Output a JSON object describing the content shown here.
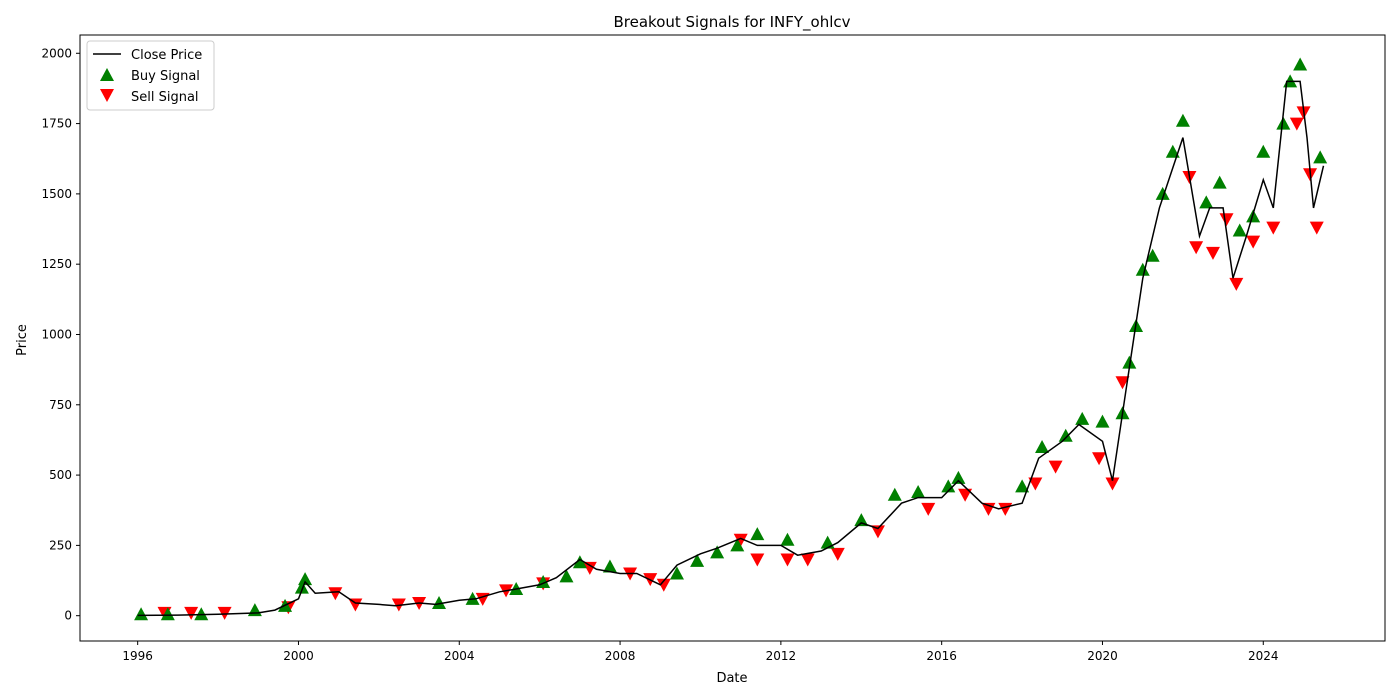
{
  "chart_data": {
    "type": "line",
    "title": "Breakout Signals for INFY_ohlcv",
    "xlabel": "Date",
    "ylabel": "Price",
    "xlim": [
      "1994-07-26",
      "2027-01-11"
    ],
    "ylim": [
      -90,
      2065
    ],
    "x_ticks": [
      "1996",
      "2000",
      "2004",
      "2008",
      "2012",
      "2016",
      "2020",
      "2024"
    ],
    "y_ticks": [
      "0",
      "250",
      "500",
      "750",
      "1000",
      "1250",
      "1500",
      "1750",
      "2000"
    ],
    "grid": false,
    "legend_position": "top-left",
    "colors": {
      "close": "#000000",
      "buy": "#008000",
      "sell": "#ff0000"
    },
    "series": [
      {
        "name": "Close Price",
        "x": [
          "1996-01-01",
          "1997-01-01",
          "1998-01-01",
          "1999-01-01",
          "1999-06-01",
          "2000-01-01",
          "2000-03-01",
          "2000-06-01",
          "2001-01-01",
          "2001-06-01",
          "2002-01-01",
          "2002-06-01",
          "2003-01-01",
          "2003-06-01",
          "2004-01-01",
          "2004-06-01",
          "2005-01-01",
          "2005-06-01",
          "2006-01-01",
          "2006-06-01",
          "2007-01-01",
          "2007-06-01",
          "2008-01-01",
          "2008-06-01",
          "2009-01-01",
          "2009-06-01",
          "2010-01-01",
          "2010-06-01",
          "2011-01-01",
          "2011-06-01",
          "2012-01-01",
          "2012-06-01",
          "2013-01-01",
          "2013-06-01",
          "2014-01-01",
          "2014-06-01",
          "2015-01-01",
          "2015-06-01",
          "2016-01-01",
          "2016-06-01",
          "2017-01-01",
          "2017-06-01",
          "2018-01-01",
          "2018-06-01",
          "2019-01-01",
          "2019-06-01",
          "2020-01-01",
          "2020-04-01",
          "2020-08-01",
          "2021-01-01",
          "2021-06-01",
          "2022-01-01",
          "2022-06-01",
          "2022-09-01",
          "2023-01-01",
          "2023-04-01",
          "2023-08-01",
          "2024-01-01",
          "2024-04-01",
          "2024-08-01",
          "2024-12-01",
          "2025-02-01",
          "2025-04-01",
          "2025-07-01"
        ],
        "y": [
          1,
          2,
          5,
          10,
          20,
          60,
          120,
          80,
          85,
          45,
          40,
          35,
          45,
          40,
          55,
          60,
          85,
          95,
          110,
          135,
          200,
          165,
          150,
          150,
          110,
          180,
          220,
          240,
          275,
          250,
          250,
          215,
          230,
          260,
          330,
          310,
          400,
          420,
          420,
          480,
          400,
          380,
          400,
          560,
          620,
          680,
          620,
          480,
          800,
          1200,
          1450,
          1700,
          1350,
          1450,
          1450,
          1200,
          1350,
          1550,
          1450,
          1900,
          1900,
          1700,
          1450,
          1600
        ]
      },
      {
        "name": "Buy Signal",
        "x": [
          "1996-02-01",
          "1996-10-01",
          "1997-08-01",
          "1998-12-01",
          "1999-09-01",
          "2000-02-01",
          "2000-03-01",
          "2003-07-01",
          "2004-05-01",
          "2005-06-01",
          "2006-02-01",
          "2006-09-01",
          "2007-01-01",
          "2007-10-01",
          "2009-06-01",
          "2009-12-01",
          "2010-06-01",
          "2010-12-01",
          "2011-06-01",
          "2012-03-01",
          "2013-03-01",
          "2014-01-01",
          "2014-11-01",
          "2015-06-01",
          "2016-03-01",
          "2016-06-01",
          "2018-01-01",
          "2018-07-01",
          "2019-02-01",
          "2019-07-01",
          "2020-01-01",
          "2020-07-01",
          "2020-09-01",
          "2020-11-01",
          "2021-01-01",
          "2021-04-01",
          "2021-07-01",
          "2021-10-01",
          "2022-01-01",
          "2022-08-01",
          "2022-12-01",
          "2023-06-01",
          "2023-10-01",
          "2024-01-01",
          "2024-07-01",
          "2024-09-01",
          "2024-12-01",
          "2025-06-01"
        ],
        "y": [
          5,
          5,
          5,
          20,
          35,
          100,
          130,
          45,
          60,
          95,
          120,
          140,
          190,
          175,
          150,
          195,
          225,
          250,
          290,
          270,
          260,
          340,
          430,
          440,
          460,
          490,
          460,
          600,
          640,
          700,
          690,
          720,
          900,
          1030,
          1230,
          1280,
          1500,
          1650,
          1760,
          1470,
          1540,
          1370,
          1420,
          1650,
          1750,
          1900,
          1960,
          1630
        ]
      },
      {
        "name": "Sell Signal",
        "x": [
          "1996-09-01",
          "1997-05-01",
          "1998-03-01",
          "1999-10-01",
          "2000-12-01",
          "2001-06-01",
          "2002-07-01",
          "2003-01-01",
          "2004-08-01",
          "2005-03-01",
          "2006-02-01",
          "2007-04-01",
          "2008-04-01",
          "2008-10-01",
          "2009-02-01",
          "2011-01-01",
          "2011-06-01",
          "2012-03-01",
          "2012-09-01",
          "2013-06-01",
          "2014-06-01",
          "2015-09-01",
          "2016-08-01",
          "2017-03-01",
          "2017-08-01",
          "2018-05-01",
          "2018-11-01",
          "2019-12-01",
          "2020-04-01",
          "2020-07-01",
          "2022-03-01",
          "2022-05-01",
          "2022-10-01",
          "2023-02-01",
          "2023-05-01",
          "2023-10-01",
          "2024-04-01",
          "2024-11-01",
          "2025-01-01",
          "2025-03-01",
          "2025-05-01"
        ],
        "y": [
          10,
          10,
          10,
          30,
          80,
          40,
          40,
          45,
          60,
          90,
          115,
          170,
          150,
          130,
          110,
          270,
          200,
          200,
          200,
          220,
          300,
          380,
          430,
          380,
          380,
          470,
          530,
          560,
          470,
          830,
          1560,
          1310,
          1290,
          1410,
          1180,
          1330,
          1380,
          1750,
          1790,
          1570,
          1380
        ]
      }
    ]
  }
}
